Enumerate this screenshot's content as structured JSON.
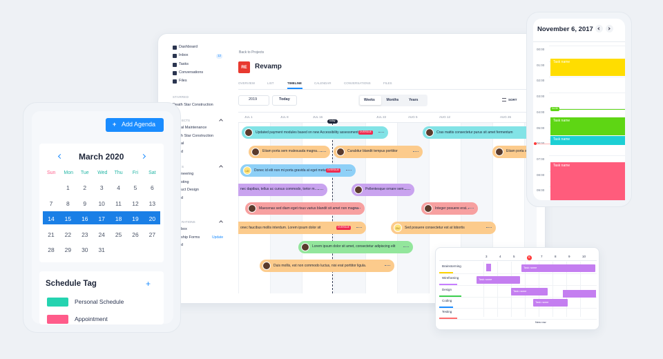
{
  "sidebar": {
    "items": [
      {
        "label": "Dashboard"
      },
      {
        "label": "Inbox",
        "badge": "12"
      },
      {
        "label": "Tasks"
      },
      {
        "label": "Conversations"
      },
      {
        "label": "Files"
      }
    ],
    "starred_heading": "STARRED",
    "starred": [
      "Death Star Construction"
    ],
    "projects_heading": "ECTS",
    "projects": [
      "al Maintenance",
      "h Star Construction",
      "al",
      "d"
    ],
    "teams_heading": "S",
    "teams": [
      "neering",
      "sting",
      "uct Design",
      "d"
    ],
    "ops_heading": "RATIONS",
    "ops": [
      "box",
      "ship Forms",
      "d"
    ],
    "ops_action": "Update"
  },
  "project": {
    "back": "Back to Projects",
    "badge": "RE",
    "name": "Revamp",
    "tabs": [
      "OVERVIEW",
      "LIST",
      "TIMELINE",
      "CALENDAR",
      "CONVERSATIONS",
      "FILES"
    ],
    "active_tab": 2,
    "year": "2019",
    "today_button": "Today",
    "views": [
      "Weeks",
      "Months",
      "Years"
    ],
    "active_view": 0,
    "sort": "SORT"
  },
  "timeline": {
    "dates": [
      "JUL 1",
      "JUL 8",
      "JUL 16",
      "JUL 22",
      "AUG 5",
      "AUG 12",
      "AUG 26"
    ],
    "today_marker": "today",
    "tasks": [
      {
        "label": "Updated payment modules based on new Accessibility assessment",
        "badge": "OVERDUE"
      },
      {
        "label": "Cras mattis consectetur purus sit amet fermentum"
      },
      {
        "label": "Etiam porta sem malesuada magna..."
      },
      {
        "label": "Curabitur blandit tempus porttitor"
      },
      {
        "label": "Etiam porta se..."
      },
      {
        "label": "Donec id elit non mi porta gravida at eget metus",
        "badge": "OVERDUE",
        "avatar": "LD"
      },
      {
        "label": "nec dapibus, tellus ac cursus commodo, tortor m..."
      },
      {
        "label": "Pellentesque ornare sem..."
      },
      {
        "label": "Maecenas sed diam eget risus varius blandit sit amet non magna"
      },
      {
        "label": "Integer posuere erat..."
      },
      {
        "label": "onec faucibus mollis interdum. Lorem ipsum dolor sit",
        "badge": "OVERDUE"
      },
      {
        "label": "Sed posuere consectetur est at lobortis",
        "avatar": "DV"
      },
      {
        "label": "Lorem ipsum dolor sit amet, consectetur adipiscing elit"
      },
      {
        "label": "Duis mollis, est non commodo luctus, nisi erat porttitor ligula."
      }
    ]
  },
  "agenda": {
    "add_button": "Add Agenda",
    "month": "March 2020",
    "weekdays": [
      "Sun",
      "Mon",
      "Tue",
      "Wed",
      "Thu",
      "Fri",
      "Sat"
    ],
    "weeks": [
      [
        1,
        2,
        3,
        4,
        5,
        6
      ],
      [
        7,
        8,
        9,
        10,
        11,
        12,
        13
      ],
      [
        14,
        15,
        16,
        17,
        18,
        19,
        20
      ],
      [
        21,
        22,
        23,
        24,
        25,
        26,
        27
      ],
      [
        28,
        29,
        30,
        31
      ]
    ],
    "highlighted_week": 2,
    "tag_title": "Schedule Tag",
    "tag_add": "+",
    "tags": [
      {
        "label": "Personal Schedule",
        "color": "#25d3b0"
      },
      {
        "label": "Appointment",
        "color": "#ff5c8a"
      }
    ]
  },
  "day_view": {
    "date": "November 6, 2017",
    "times": [
      "00:00",
      "01:00",
      "02:00",
      "03:00",
      "04:00",
      "05:00",
      "06:00",
      "07:00",
      "08:00",
      "09:00"
    ],
    "now_chip": "04:30",
    "events": [
      {
        "label": "Task name",
        "color": "#ffdd00"
      },
      {
        "label": "Task name",
        "color": "#5ed614"
      },
      {
        "label": "Task name",
        "color": "#1ccfd4"
      },
      {
        "label": "Task name",
        "color": "#ff5c7c"
      }
    ]
  },
  "gantt": {
    "rows": [
      "Brainstorming",
      "Wireframing",
      "Design",
      "Coding",
      "Testing"
    ],
    "days": [
      "3",
      "4",
      "5",
      "6",
      "7",
      "8",
      "9",
      "10"
    ],
    "current_day": 3,
    "bars": [
      {
        "label": "Task name"
      },
      {
        "label": "Task name"
      },
      {
        "label": "Task name"
      },
      {
        "label": "Task name"
      }
    ],
    "new_row": "New row"
  }
}
